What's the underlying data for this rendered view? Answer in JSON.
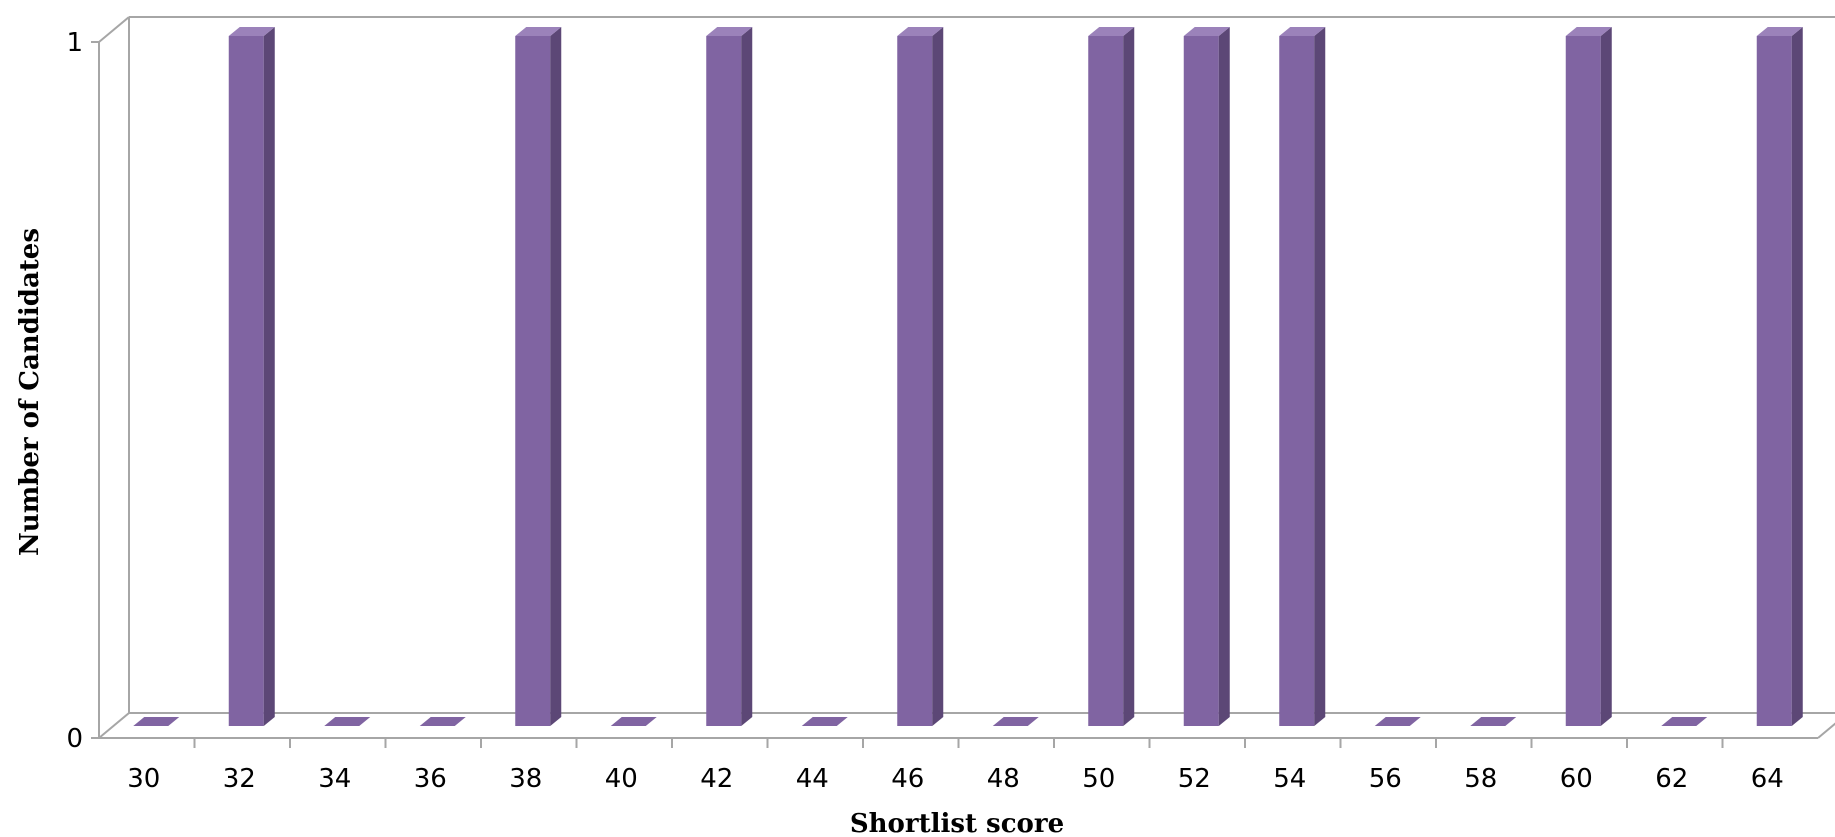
{
  "chart_data": {
    "type": "bar",
    "title": "",
    "xlabel": "Shortlist score",
    "ylabel": "Number of Candidates",
    "categories": [
      "30",
      "32",
      "34",
      "36",
      "38",
      "40",
      "42",
      "44",
      "46",
      "48",
      "50",
      "52",
      "54",
      "56",
      "58",
      "60",
      "62",
      "64"
    ],
    "values": [
      0,
      1,
      0,
      0,
      1,
      0,
      1,
      0,
      1,
      0,
      1,
      1,
      1,
      0,
      0,
      1,
      0,
      1
    ],
    "yticks": [
      "0",
      "1"
    ],
    "ylim": [
      0,
      1
    ],
    "grid": false,
    "legend": "none",
    "style": "3d-column",
    "colors": {
      "bar_front": "#8064a2",
      "bar_side": "#5c4776",
      "bar_top": "#9b82ba",
      "axis": "#a6a6a6"
    }
  }
}
